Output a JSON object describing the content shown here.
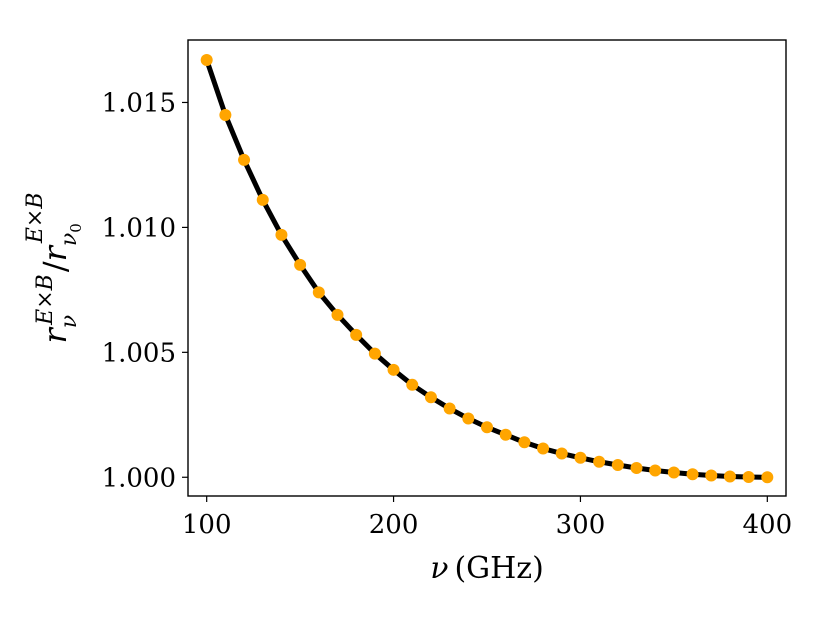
{
  "chart_data": {
    "type": "line",
    "xlabel_symbol": "ν",
    "xlabel_unit": "(GHz)",
    "ylabel_base": "r",
    "ylabel_sub": "ν",
    "ylabel_sup": "E×B",
    "ylabel_den_base": "r",
    "ylabel_den_sub": "ν",
    "ylabel_den_subsub": "0",
    "ylabel_den_sup": "E×B",
    "xlim": [
      90,
      410
    ],
    "ylim": [
      0.99925,
      1.0175
    ],
    "x_ticks": [
      100,
      200,
      300,
      400
    ],
    "y_ticks": [
      1.0,
      1.005,
      1.01,
      1.015
    ],
    "x_tick_labels": [
      "100",
      "200",
      "300",
      "400"
    ],
    "y_tick_labels": [
      "1.000",
      "1.005",
      "1.010",
      "1.015"
    ],
    "grid": false,
    "series": [
      {
        "style": "line",
        "color": "#000000",
        "x": [
          100,
          110,
          120,
          130,
          140,
          150,
          160,
          170,
          180,
          190,
          200,
          210,
          220,
          230,
          240,
          250,
          260,
          270,
          280,
          290,
          300,
          310,
          320,
          330,
          340,
          350,
          360,
          370,
          380,
          390,
          400
        ],
        "y": [
          1.0167,
          1.0145,
          1.0127,
          1.0111,
          1.0097,
          1.0085,
          1.0074,
          1.0065,
          1.0057,
          1.00495,
          1.0043,
          1.0037,
          1.0032,
          1.00275,
          1.00235,
          1.002,
          1.0017,
          1.0014,
          1.00115,
          1.00095,
          1.00078,
          1.00062,
          1.00049,
          1.00037,
          1.00027,
          1.00019,
          1.00012,
          1.00007,
          1.00003,
          1.00001,
          1.0
        ]
      },
      {
        "style": "markers",
        "color": "#ffa500",
        "x": [
          100,
          110,
          120,
          130,
          140,
          150,
          160,
          170,
          180,
          190,
          200,
          210,
          220,
          230,
          240,
          250,
          260,
          270,
          280,
          290,
          300,
          310,
          320,
          330,
          340,
          350,
          360,
          370,
          380,
          390,
          400
        ],
        "y": [
          1.0167,
          1.0145,
          1.0127,
          1.0111,
          1.0097,
          1.0085,
          1.0074,
          1.0065,
          1.0057,
          1.00495,
          1.0043,
          1.0037,
          1.0032,
          1.00275,
          1.00235,
          1.002,
          1.0017,
          1.0014,
          1.00115,
          1.00095,
          1.00078,
          1.00062,
          1.00049,
          1.00037,
          1.00027,
          1.00019,
          1.00012,
          1.00007,
          1.00003,
          1.00001,
          1.0
        ]
      }
    ]
  }
}
